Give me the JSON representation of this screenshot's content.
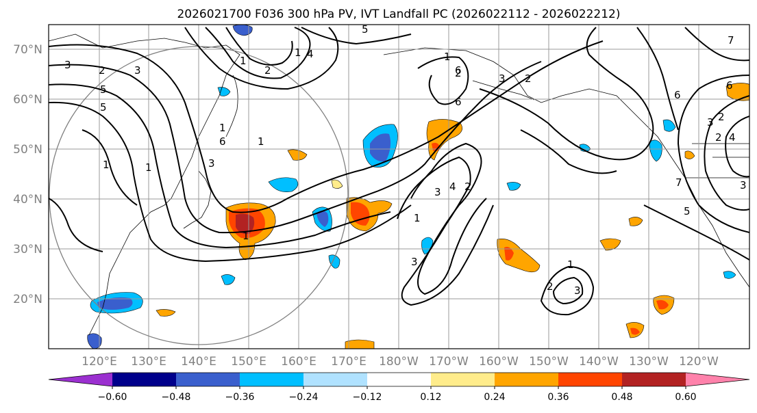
{
  "title": "2026021700 F036 300 hPa PV, IVT Landfall PC (2026022112 - 2026022212)",
  "lat_labels": [
    "70°N",
    "60°N",
    "50°N",
    "40°N",
    "30°N",
    "20°N"
  ],
  "lon_labels": [
    "120°E",
    "130°E",
    "140°E",
    "150°E",
    "160°E",
    "170°E",
    "180°W",
    "170°W",
    "160°W",
    "150°W",
    "140°W",
    "130°W",
    "120°W"
  ],
  "colorbar": {
    "ticks": [
      "−0.60",
      "−0.48",
      "−0.36",
      "−0.24",
      "−0.12",
      "0.12",
      "0.24",
      "0.36",
      "0.48",
      "0.60"
    ],
    "colors": [
      "#9b30d0",
      "#00008b",
      "#3a5fcd",
      "#00bfff",
      "#b0e2ff",
      "#ffffff",
      "#ffec8b",
      "#ffa500",
      "#ff4500",
      "#b22222",
      "#ff82ab"
    ]
  },
  "contour_labels": [
    "5",
    "3",
    "2",
    "1",
    "1",
    "2",
    "3",
    "4",
    "5",
    "1",
    "1",
    "1",
    "6",
    "5",
    "3",
    "1",
    "1",
    "3",
    "1",
    "3",
    "4",
    "2",
    "1",
    "3",
    "2",
    "3",
    "1",
    "2",
    "2",
    "6",
    "7",
    "3",
    "2",
    "6",
    "3",
    "2",
    "5",
    "6",
    "4",
    "7",
    "6"
  ]
}
